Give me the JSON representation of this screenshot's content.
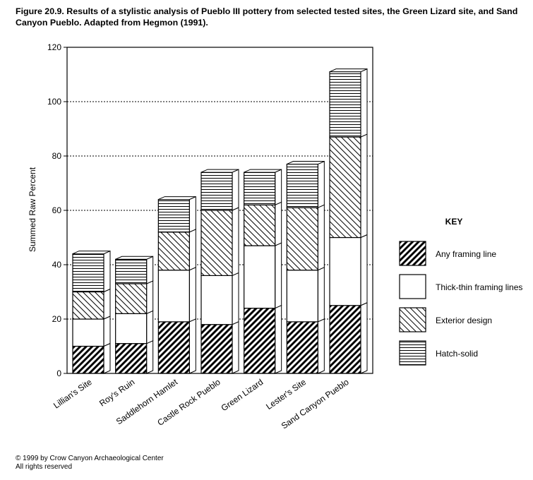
{
  "caption": "Figure 20.9.  Results of a stylistic analysis of Pueblo III pottery from selected tested sites, the Green Lizard site, and Sand Canyon Pueblo. Adapted from Hegmon (1991).",
  "copyright": {
    "line1": "© 1999 by Crow Canyon Archaeological Center",
    "line2": "All rights reserved"
  },
  "key_title": "KEY",
  "chart_data": {
    "type": "bar",
    "stacked": true,
    "title": "",
    "xlabel": "",
    "ylabel": "Summed Raw Percent",
    "ylim": [
      0,
      120
    ],
    "yticks": [
      0,
      20,
      40,
      60,
      80,
      100,
      120
    ],
    "grid": "horizontal dotted",
    "legend_position": "right",
    "categories": [
      "Lillian's Site",
      "Roy's Ruin",
      "Saddlehorn Hamlet",
      "Castle Rock Pueblo",
      "Green Lizard",
      "Lester's Site",
      "Sand Canyon Pueblo"
    ],
    "series": [
      {
        "name": "Any framing line",
        "pattern": "diagonal-dense",
        "values": [
          10,
          11,
          19,
          18,
          24,
          19,
          25
        ]
      },
      {
        "name": "Thick-thin framing lines",
        "pattern": "none",
        "values": [
          10,
          11,
          19,
          18,
          23,
          19,
          25
        ]
      },
      {
        "name": "Exterior design",
        "pattern": "diagonal-sparse",
        "values": [
          10,
          11,
          14,
          24,
          15,
          23,
          37
        ]
      },
      {
        "name": "Hatch-solid",
        "pattern": "horizontal",
        "values": [
          14,
          9,
          12,
          14,
          12,
          16,
          24
        ]
      }
    ]
  }
}
